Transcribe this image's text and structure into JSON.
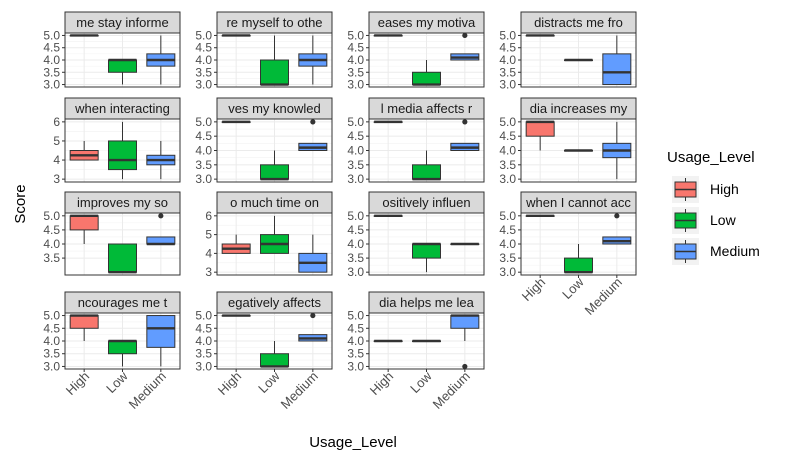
{
  "chart_data": {
    "type": "boxplot",
    "xlabel": "Usage_Level",
    "ylabel": "Score",
    "categories": [
      "High",
      "Low",
      "Medium"
    ],
    "legend": {
      "title": "Usage_Level",
      "placement": "right",
      "items": [
        {
          "label": "High",
          "color": "#F8766D"
        },
        {
          "label": "Low",
          "color": "#00BA38"
        },
        {
          "label": "Medium",
          "color": "#619CFF"
        }
      ]
    },
    "grid": true,
    "panels": [
      {
        "strip": "me stay informe",
        "yticks": [
          3.0,
          3.5,
          4.0,
          4.5,
          5.0
        ],
        "ylim": [
          2.9,
          5.1
        ],
        "boxes": [
          [
            5,
            5,
            5,
            5,
            5,
            null
          ],
          [
            3,
            3.5,
            4,
            4,
            4,
            null
          ],
          [
            3,
            3.75,
            4,
            4.25,
            5,
            null
          ]
        ]
      },
      {
        "strip": "re myself to othe",
        "yticks": [
          3.0,
          3.5,
          4.0,
          4.5,
          5.0
        ],
        "ylim": [
          2.9,
          5.1
        ],
        "boxes": [
          [
            5,
            5,
            5,
            5,
            5,
            null
          ],
          [
            3,
            3,
            3,
            4,
            5,
            null
          ],
          [
            3,
            3.75,
            4,
            4.25,
            5,
            null
          ]
        ]
      },
      {
        "strip": "eases my motiva",
        "yticks": [
          3.0,
          3.5,
          4.0,
          4.5,
          5.0
        ],
        "ylim": [
          2.9,
          5.1
        ],
        "boxes": [
          [
            5,
            5,
            5,
            5,
            5,
            null
          ],
          [
            3,
            3,
            3,
            3.5,
            4,
            null
          ],
          [
            4,
            4,
            4.1,
            4.25,
            4.25,
            5
          ]
        ]
      },
      {
        "strip": "distracts me fro",
        "yticks": [
          3.0,
          3.5,
          4.0,
          4.5,
          5.0
        ],
        "ylim": [
          2.9,
          5.1
        ],
        "boxes": [
          [
            5,
            5,
            5,
            5,
            5,
            null
          ],
          [
            4,
            4,
            4,
            4,
            4,
            null
          ],
          [
            3,
            3,
            3.5,
            4.25,
            5,
            null
          ]
        ]
      },
      {
        "strip": "when interacting",
        "yticks": [
          3,
          4,
          5,
          6
        ],
        "ylim": [
          2.85,
          6.15
        ],
        "boxes": [
          [
            4,
            4,
            4.25,
            4.5,
            5,
            null
          ],
          [
            3,
            3.5,
            4,
            5,
            6,
            null
          ],
          [
            3,
            3.75,
            4,
            4.25,
            5,
            null
          ]
        ]
      },
      {
        "strip": "ves my knowled",
        "yticks": [
          3.0,
          3.5,
          4.0,
          4.5,
          5.0
        ],
        "ylim": [
          2.9,
          5.1
        ],
        "boxes": [
          [
            5,
            5,
            5,
            5,
            5,
            null
          ],
          [
            3,
            3,
            3,
            3.5,
            4,
            null
          ],
          [
            4,
            4,
            4.1,
            4.25,
            4.25,
            5
          ]
        ]
      },
      {
        "strip": "l media affects r",
        "yticks": [
          3.0,
          3.5,
          4.0,
          4.5,
          5.0
        ],
        "ylim": [
          2.9,
          5.1
        ],
        "boxes": [
          [
            5,
            5,
            5,
            5,
            5,
            null
          ],
          [
            3,
            3,
            3,
            3.5,
            4,
            null
          ],
          [
            4,
            4,
            4.1,
            4.25,
            4.25,
            5
          ]
        ]
      },
      {
        "strip": "dia increases my",
        "yticks": [
          3.0,
          3.5,
          4.0,
          4.5,
          5.0
        ],
        "ylim": [
          2.9,
          5.1
        ],
        "boxes": [
          [
            4,
            4.5,
            5,
            5,
            5,
            null
          ],
          [
            4,
            4,
            4,
            4,
            4,
            null
          ],
          [
            3,
            3.75,
            4,
            4.25,
            5,
            null
          ]
        ]
      },
      {
        "strip": "improves my so",
        "yticks": [
          3.5,
          4.0,
          4.5,
          5.0
        ],
        "ylim": [
          2.9,
          5.1
        ],
        "boxes": [
          [
            4,
            4.5,
            5,
            5,
            5,
            null
          ],
          [
            3,
            3,
            3,
            4,
            4,
            null
          ],
          [
            4,
            4,
            4,
            4.25,
            4.25,
            5
          ]
        ]
      },
      {
        "strip": "o much time on",
        "yticks": [
          3,
          4,
          5,
          6
        ],
        "ylim": [
          2.85,
          6.15
        ],
        "boxes": [
          [
            4,
            4,
            4.25,
            4.5,
            5,
            null
          ],
          [
            4,
            4,
            4.5,
            5,
            6,
            null
          ],
          [
            3,
            3,
            3.5,
            4,
            5,
            null
          ]
        ]
      },
      {
        "strip": "ositively influen",
        "yticks": [
          3.0,
          3.5,
          4.0,
          4.5,
          5.0
        ],
        "ylim": [
          2.9,
          5.1
        ],
        "boxes": [
          [
            5,
            5,
            5,
            5,
            5,
            null
          ],
          [
            3,
            3.5,
            4,
            4,
            4,
            null
          ],
          [
            4,
            4,
            4,
            4,
            4,
            null
          ]
        ]
      },
      {
        "strip": "when I cannot acc",
        "yticks": [
          3.0,
          3.5,
          4.0,
          4.5,
          5.0
        ],
        "ylim": [
          2.9,
          5.1
        ],
        "boxes": [
          [
            5,
            5,
            5,
            5,
            5,
            null
          ],
          [
            3,
            3,
            3,
            3.5,
            4,
            null
          ],
          [
            4,
            4,
            4.1,
            4.25,
            4.25,
            5
          ]
        ]
      },
      {
        "strip": "ncourages me t",
        "yticks": [
          3.0,
          3.5,
          4.0,
          4.5,
          5.0
        ],
        "ylim": [
          2.9,
          5.1
        ],
        "boxes": [
          [
            4,
            4.5,
            5,
            5,
            5,
            null
          ],
          [
            3,
            3.5,
            4,
            4,
            4,
            null
          ],
          [
            3,
            3.75,
            4.5,
            5,
            5,
            null
          ]
        ]
      },
      {
        "strip": "egatively affects",
        "yticks": [
          3.0,
          3.5,
          4.0,
          4.5,
          5.0
        ],
        "ylim": [
          2.9,
          5.1
        ],
        "boxes": [
          [
            5,
            5,
            5,
            5,
            5,
            null
          ],
          [
            3,
            3,
            3,
            3.5,
            4,
            null
          ],
          [
            4,
            4,
            4.1,
            4.25,
            4.25,
            5
          ]
        ]
      },
      {
        "strip": "dia helps me lea",
        "yticks": [
          3.0,
          3.5,
          4.0,
          4.5,
          5.0
        ],
        "ylim": [
          2.9,
          5.1
        ],
        "boxes": [
          [
            4,
            4,
            4,
            4,
            4,
            null
          ],
          [
            4,
            4,
            4,
            4,
            4,
            null
          ],
          [
            4,
            4.5,
            5,
            5,
            5,
            3
          ]
        ]
      }
    ]
  }
}
